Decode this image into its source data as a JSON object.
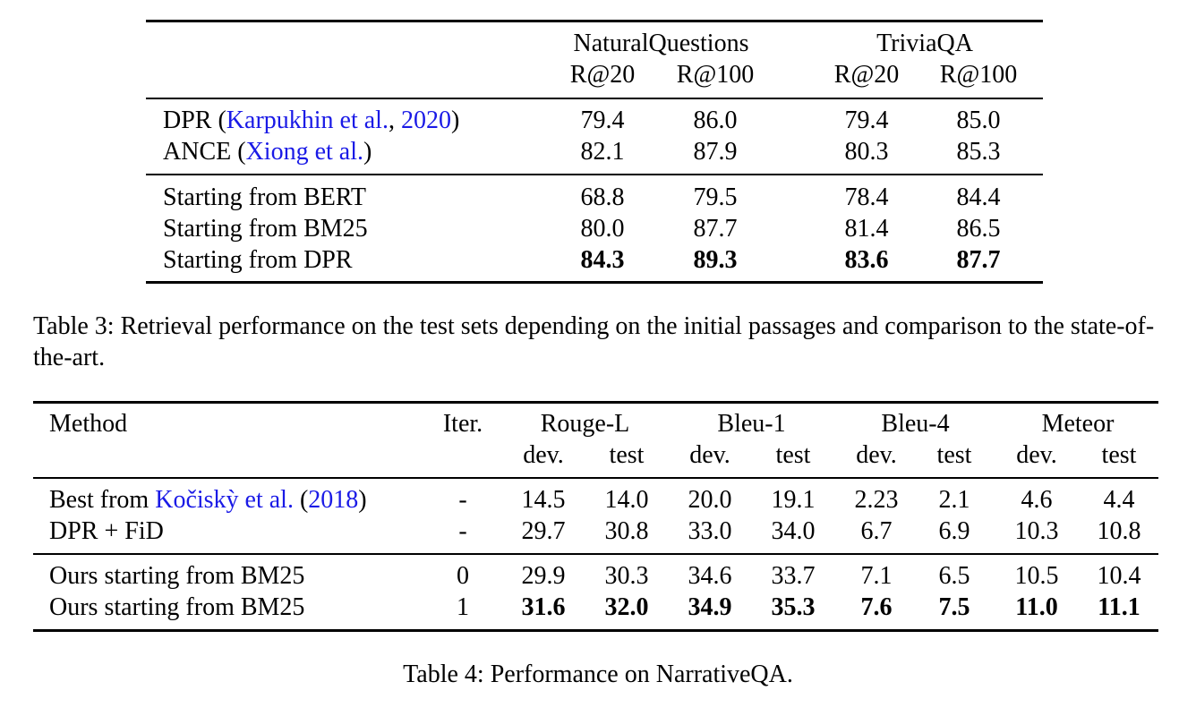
{
  "table3": {
    "groups": [
      "NaturalQuestions",
      "TriviaQA"
    ],
    "metrics": [
      "R@20",
      "R@100",
      "R@20",
      "R@100"
    ],
    "rows": [
      {
        "method": "DPR",
        "cite_open": "(",
        "cite_author": "Karpukhin et al.",
        "cite_sep": ", ",
        "cite_year": "2020",
        "cite_close": ")",
        "values": [
          "79.4",
          "86.0",
          "79.4",
          "85.0"
        ]
      },
      {
        "method": "ANCE",
        "cite_open": "(",
        "cite_author": "Xiong et al.",
        "cite_close": ")",
        "values": [
          "82.1",
          "87.9",
          "80.3",
          "85.3"
        ]
      },
      {
        "method": "Starting from BERT",
        "values": [
          "68.8",
          "79.5",
          "78.4",
          "84.4"
        ]
      },
      {
        "method": "Starting from BM25",
        "values": [
          "80.0",
          "87.7",
          "81.4",
          "86.5"
        ]
      },
      {
        "method": "Starting from DPR",
        "values": [
          "84.3",
          "89.3",
          "83.6",
          "87.7"
        ],
        "bold": true
      }
    ],
    "caption": "Table 3: Retrieval performance on the test sets depending on the initial passages and comparison to the state-of-the-art."
  },
  "table4": {
    "header_method": "Method",
    "header_iter": "Iter.",
    "metrics": [
      "Rouge-L",
      "Bleu-1",
      "Bleu-4",
      "Meteor"
    ],
    "splits": [
      "dev.",
      "test",
      "dev.",
      "test",
      "dev.",
      "test",
      "dev.",
      "test"
    ],
    "rows": [
      {
        "method": "Best from",
        "cite_author": "Kočiskỳ et al.",
        "cite_open": "(",
        "cite_year": "2018",
        "cite_close": ")",
        "iter": "-",
        "values": [
          "14.5",
          "14.0",
          "20.0",
          "19.1",
          "2.23",
          "2.1",
          "4.6",
          "4.4"
        ]
      },
      {
        "method": "DPR + FiD",
        "iter": "-",
        "values": [
          "29.7",
          "30.8",
          "33.0",
          "34.0",
          "6.7",
          "6.9",
          "10.3",
          "10.8"
        ]
      },
      {
        "method": "Ours starting from BM25",
        "iter": "0",
        "values": [
          "29.9",
          "30.3",
          "34.6",
          "33.7",
          "7.1",
          "6.5",
          "10.5",
          "10.4"
        ]
      },
      {
        "method": "Ours starting from BM25",
        "iter": "1",
        "values": [
          "31.6",
          "32.0",
          "34.9",
          "35.3",
          "7.6",
          "7.5",
          "11.0",
          "11.1"
        ],
        "bold": true
      }
    ],
    "caption": "Table 4: Performance on NarrativeQA."
  },
  "colors": {
    "text": "#000000",
    "citation": "#1a1ae6",
    "background": "#ffffff"
  }
}
